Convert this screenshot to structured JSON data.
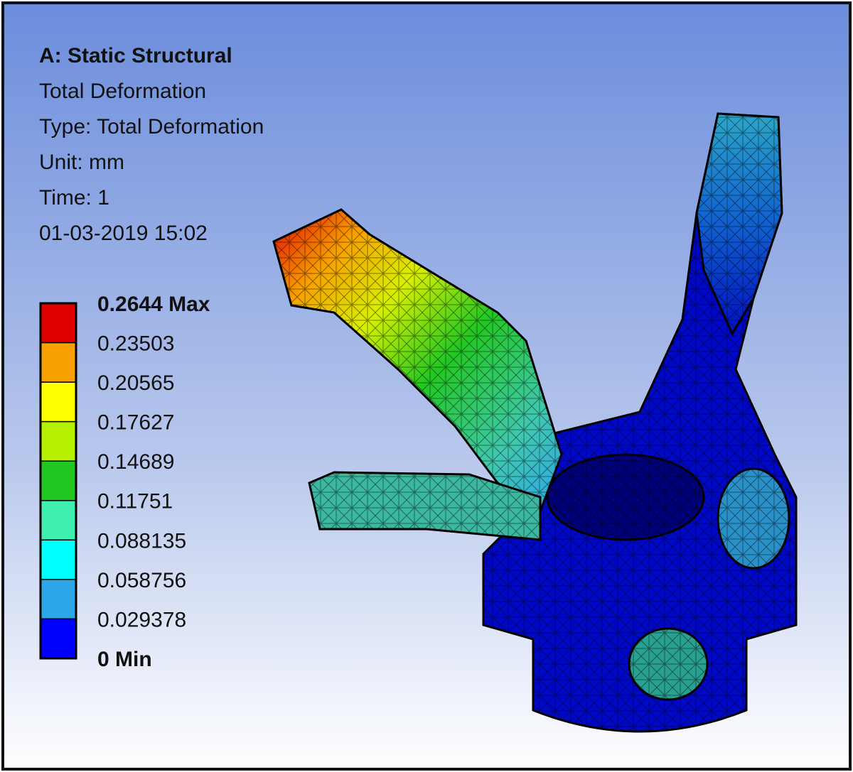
{
  "header": {
    "title": "A: Static Structural",
    "lines": [
      "Total Deformation",
      "Type: Total Deformation",
      "Unit: mm",
      "Time: 1",
      "01-03-2019 15:02"
    ]
  },
  "legend": {
    "labels": [
      "0.2644 Max",
      "0.23503",
      "0.20565",
      "0.17627",
      "0.14689",
      "0.11751",
      "0.088135",
      "0.058756",
      "0.029378",
      "0 Min"
    ],
    "colors": [
      "#e00000",
      "#f8a000",
      "#ffff00",
      "#b4f000",
      "#22c822",
      "#40f0b0",
      "#00ffff",
      "#2ba6e8",
      "#0000ff"
    ]
  }
}
